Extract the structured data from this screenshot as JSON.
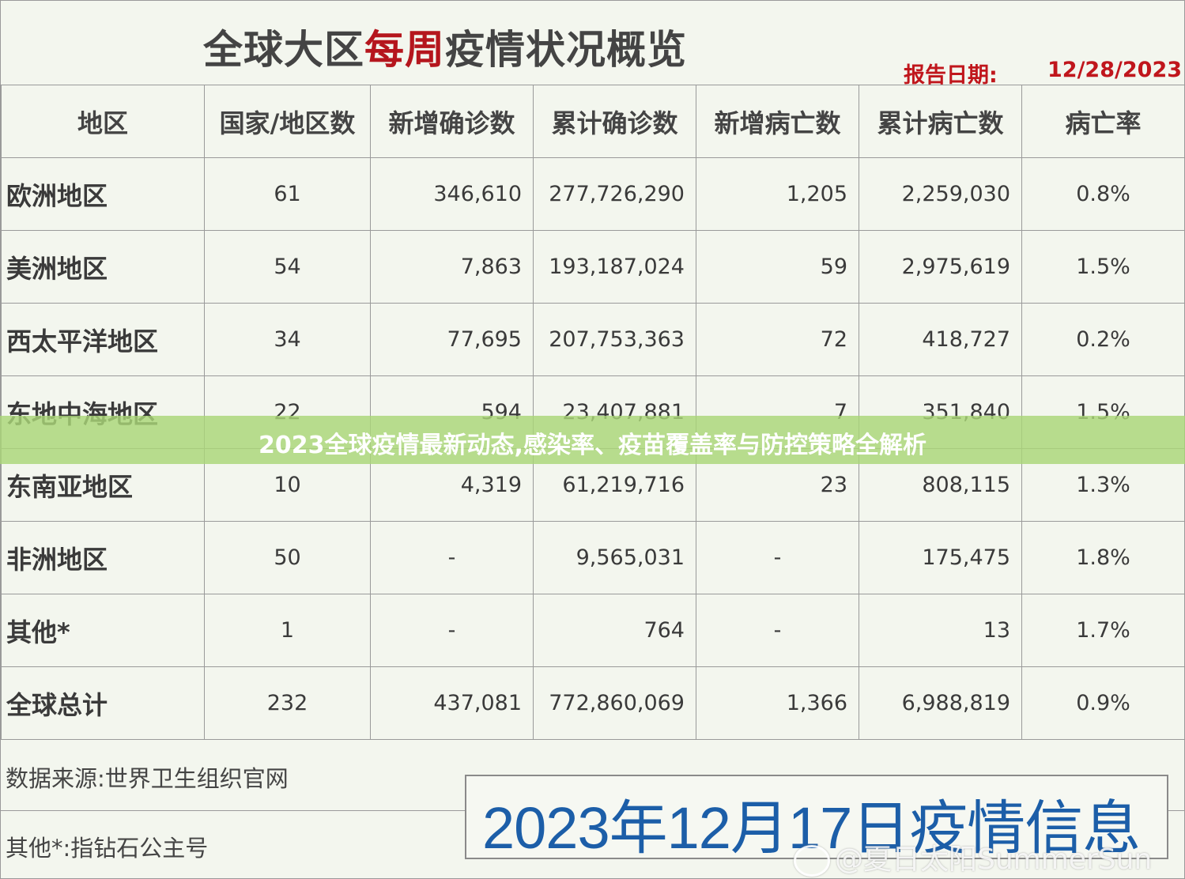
{
  "title": {
    "part1": "全球大区",
    "highlight": "每周",
    "part2": "疫情状况概览"
  },
  "report": {
    "label": "报告日期:",
    "date": "12/28/2023"
  },
  "headers": [
    "地区",
    "国家/地区数",
    "新增确诊数",
    "累计确诊数",
    "新增病亡数",
    "累计病亡数",
    "病亡率"
  ],
  "rows": [
    {
      "region": "欧洲地区",
      "countries": "61",
      "new_cases": "346,610",
      "total_cases": "277,726,290",
      "new_deaths": "1,205",
      "total_deaths": "2,259,030",
      "rate": "0.8%"
    },
    {
      "region": "美洲地区",
      "countries": "54",
      "new_cases": "7,863",
      "total_cases": "193,187,024",
      "new_deaths": "59",
      "total_deaths": "2,975,619",
      "rate": "1.5%"
    },
    {
      "region": "西太平洋地区",
      "countries": "34",
      "new_cases": "77,695",
      "total_cases": "207,753,363",
      "new_deaths": "72",
      "total_deaths": "418,727",
      "rate": "0.2%"
    },
    {
      "region": "东地中海地区",
      "countries": "22",
      "new_cases": "594",
      "total_cases": "23,407,881",
      "new_deaths": "7",
      "total_deaths": "351,840",
      "rate": "1.5%"
    },
    {
      "region": "东南亚地区",
      "countries": "10",
      "new_cases": "4,319",
      "total_cases": "61,219,716",
      "new_deaths": "23",
      "total_deaths": "808,115",
      "rate": "1.3%"
    },
    {
      "region": "非洲地区",
      "countries": "50",
      "new_cases": "-",
      "total_cases": "9,565,031",
      "new_deaths": "-",
      "total_deaths": "175,475",
      "rate": "1.8%"
    },
    {
      "region": "其他*",
      "countries": "1",
      "new_cases": "-",
      "total_cases": "764",
      "new_deaths": "-",
      "total_deaths": "13",
      "rate": "1.7%"
    },
    {
      "region": "全球总计",
      "countries": "232",
      "new_cases": "437,081",
      "total_cases": "772,860,069",
      "new_deaths": "1,366",
      "total_deaths": "6,988,819",
      "rate": "0.9%"
    }
  ],
  "footer": {
    "source": "数据来源:世界卫生组织官网",
    "note": "其他*:指钻石公主号"
  },
  "stamp": "2023年12月17日疫情信息",
  "banner": "2023全球疫情最新动态,感染率、疫苗覆盖率与防控策略全解析",
  "watermark": "@夏日太阳SummerSun"
}
